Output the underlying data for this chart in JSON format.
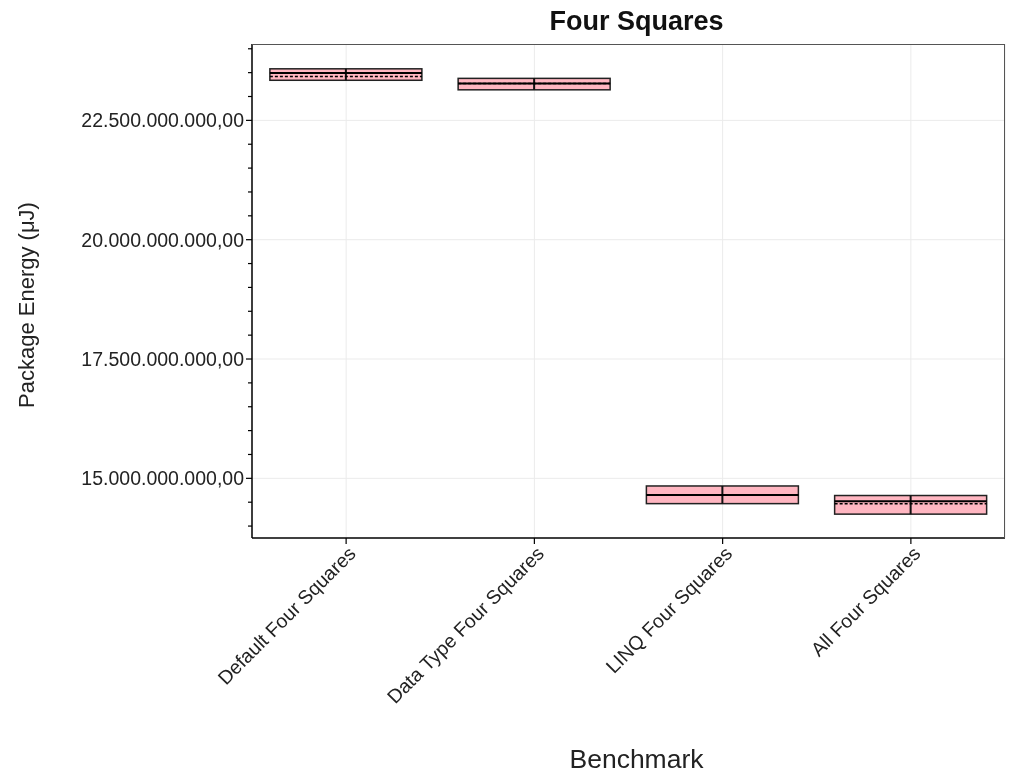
{
  "chart_data": {
    "type": "box",
    "title": "Four Squares",
    "xlabel": "Benchmark",
    "ylabel": "Package Energy (μJ)",
    "categories": [
      "Default Four Squares",
      "Data Type Four Squares",
      "LINQ Four Squares",
      "All Four Squares"
    ],
    "series": [
      {
        "color": "#ffb6c1",
        "boxes": [
          {
            "low": 23340000000,
            "q1": 23340000000,
            "median": 23490000000,
            "mean": 23420000000,
            "q3": 23580000000,
            "high": 23580000000
          },
          {
            "low": 23140000000,
            "q1": 23140000000,
            "median": 23270000000,
            "mean": 23270000000,
            "q3": 23380000000,
            "high": 23380000000
          },
          {
            "low": 14470000000,
            "q1": 14470000000,
            "median": 14650000000,
            "mean": 14650000000,
            "q3": 14840000000,
            "high": 14840000000
          },
          {
            "low": 14250000000,
            "q1": 14250000000,
            "median": 14520000000,
            "mean": 14470000000,
            "q3": 14640000000,
            "high": 14640000000
          }
        ]
      }
    ],
    "ylim": [
      13750000000,
      24100000000
    ],
    "yticks": [
      {
        "value": 14000000000,
        "label": null
      },
      {
        "value": 14500000000,
        "label": null
      },
      {
        "value": 15000000000,
        "label": "15.000.000.000,00"
      },
      {
        "value": 15500000000,
        "label": null
      },
      {
        "value": 16000000000,
        "label": null
      },
      {
        "value": 16500000000,
        "label": null
      },
      {
        "value": 17000000000,
        "label": null
      },
      {
        "value": 17500000000,
        "label": "17.500.000.000,00"
      },
      {
        "value": 18000000000,
        "label": null
      },
      {
        "value": 18500000000,
        "label": null
      },
      {
        "value": 19000000000,
        "label": null
      },
      {
        "value": 19500000000,
        "label": null
      },
      {
        "value": 20000000000,
        "label": "20.000.000.000,00"
      },
      {
        "value": 20500000000,
        "label": null
      },
      {
        "value": 21000000000,
        "label": null
      },
      {
        "value": 21500000000,
        "label": null
      },
      {
        "value": 22000000000,
        "label": null
      },
      {
        "value": 22500000000,
        "label": "22.500.000.000,00"
      },
      {
        "value": 23000000000,
        "label": null
      },
      {
        "value": 23500000000,
        "label": null
      },
      {
        "value": 24000000000,
        "label": null
      }
    ],
    "grid": true
  }
}
